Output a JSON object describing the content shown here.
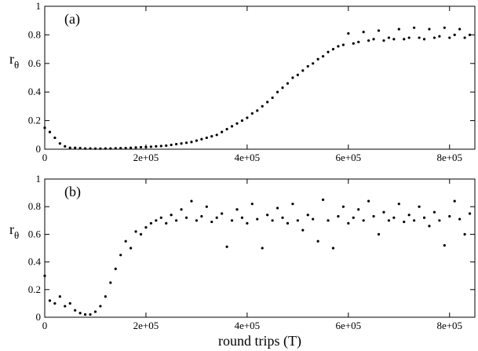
{
  "chart_data": [
    {
      "type": "scatter",
      "annotation": "(a)",
      "ylabel": {
        "main": "r",
        "sub": "θ"
      },
      "color": "#000000",
      "x": [
        0,
        10000,
        20000,
        30000,
        40000,
        50000,
        60000,
        70000,
        80000,
        90000,
        100000,
        110000,
        120000,
        130000,
        140000,
        150000,
        160000,
        170000,
        180000,
        190000,
        200000,
        210000,
        220000,
        230000,
        240000,
        250000,
        260000,
        270000,
        280000,
        290000,
        300000,
        310000,
        320000,
        330000,
        340000,
        350000,
        360000,
        370000,
        380000,
        390000,
        400000,
        410000,
        420000,
        430000,
        440000,
        450000,
        460000,
        470000,
        480000,
        490000,
        500000,
        510000,
        520000,
        530000,
        540000,
        550000,
        560000,
        570000,
        580000,
        590000,
        600000,
        610000,
        620000,
        630000,
        640000,
        650000,
        660000,
        670000,
        680000,
        690000,
        700000,
        710000,
        720000,
        730000,
        740000,
        750000,
        760000,
        770000,
        780000,
        790000,
        800000,
        810000,
        820000,
        830000,
        840000
      ],
      "values": [
        0.15,
        0.12,
        0.08,
        0.04,
        0.02,
        0.01,
        0.01,
        0.008,
        0.005,
        0.005,
        0.004,
        0.004,
        0.005,
        0.005,
        0.006,
        0.007,
        0.008,
        0.01,
        0.012,
        0.014,
        0.015,
        0.017,
        0.02,
        0.022,
        0.025,
        0.03,
        0.035,
        0.04,
        0.045,
        0.05,
        0.06,
        0.07,
        0.08,
        0.09,
        0.1,
        0.12,
        0.14,
        0.16,
        0.18,
        0.2,
        0.22,
        0.25,
        0.27,
        0.3,
        0.33,
        0.36,
        0.4,
        0.43,
        0.46,
        0.5,
        0.52,
        0.55,
        0.58,
        0.6,
        0.63,
        0.65,
        0.68,
        0.7,
        0.72,
        0.73,
        0.81,
        0.74,
        0.75,
        0.82,
        0.76,
        0.77,
        0.83,
        0.76,
        0.78,
        0.77,
        0.84,
        0.77,
        0.78,
        0.85,
        0.78,
        0.77,
        0.84,
        0.78,
        0.79,
        0.85,
        0.78,
        0.8,
        0.84,
        0.78,
        0.8
      ],
      "xlim": [
        0,
        850000
      ],
      "ylim": [
        0,
        1
      ],
      "xticks": [
        0,
        {
          "value": 200000,
          "label": "2e+05"
        },
        {
          "value": 400000,
          "label": "4e+05"
        },
        {
          "value": 600000,
          "label": "6e+05"
        },
        {
          "value": 800000,
          "label": "8e+05"
        }
      ],
      "yticks": [
        0,
        0.2,
        0.4,
        0.6,
        0.8,
        1
      ]
    },
    {
      "type": "scatter",
      "annotation": "(b)",
      "ylabel": {
        "main": "r",
        "sub": "θ"
      },
      "xlabel": "round trips (T)",
      "color": "#000000",
      "x": [
        0,
        10000,
        20000,
        30000,
        40000,
        50000,
        60000,
        70000,
        80000,
        90000,
        100000,
        110000,
        120000,
        130000,
        140000,
        150000,
        160000,
        170000,
        180000,
        190000,
        200000,
        210000,
        220000,
        230000,
        240000,
        250000,
        260000,
        270000,
        280000,
        290000,
        300000,
        310000,
        320000,
        330000,
        340000,
        350000,
        360000,
        370000,
        380000,
        390000,
        400000,
        410000,
        420000,
        430000,
        440000,
        450000,
        460000,
        470000,
        480000,
        490000,
        500000,
        510000,
        520000,
        530000,
        540000,
        550000,
        560000,
        570000,
        580000,
        590000,
        600000,
        610000,
        620000,
        630000,
        640000,
        650000,
        660000,
        670000,
        680000,
        690000,
        700000,
        710000,
        720000,
        730000,
        740000,
        750000,
        760000,
        770000,
        780000,
        790000,
        800000,
        810000,
        820000,
        830000,
        840000
      ],
      "values": [
        0.3,
        0.12,
        0.1,
        0.15,
        0.08,
        0.1,
        0.05,
        0.03,
        0.02,
        0.02,
        0.04,
        0.08,
        0.15,
        0.25,
        0.35,
        0.45,
        0.55,
        0.5,
        0.62,
        0.6,
        0.65,
        0.68,
        0.7,
        0.72,
        0.68,
        0.74,
        0.7,
        0.78,
        0.72,
        0.84,
        0.7,
        0.73,
        0.8,
        0.69,
        0.72,
        0.75,
        0.51,
        0.7,
        0.78,
        0.72,
        0.68,
        0.82,
        0.71,
        0.5,
        0.74,
        0.7,
        0.79,
        0.72,
        0.68,
        0.82,
        0.7,
        0.63,
        0.74,
        0.71,
        0.55,
        0.85,
        0.7,
        0.5,
        0.73,
        0.8,
        0.68,
        0.72,
        0.78,
        0.7,
        0.84,
        0.73,
        0.6,
        0.76,
        0.7,
        0.72,
        0.82,
        0.69,
        0.74,
        0.7,
        0.8,
        0.72,
        0.66,
        0.76,
        0.7,
        0.52,
        0.73,
        0.84,
        0.71,
        0.6,
        0.75
      ],
      "xlim": [
        0,
        850000
      ],
      "ylim": [
        0,
        1
      ],
      "xticks": [
        0,
        {
          "value": 200000,
          "label": "2e+05"
        },
        {
          "value": 400000,
          "label": "4e+05"
        },
        {
          "value": 600000,
          "label": "6e+05"
        },
        {
          "value": 800000,
          "label": "8e+05"
        }
      ],
      "yticks": [
        0,
        0.2,
        0.4,
        0.6,
        0.8,
        1
      ]
    }
  ]
}
